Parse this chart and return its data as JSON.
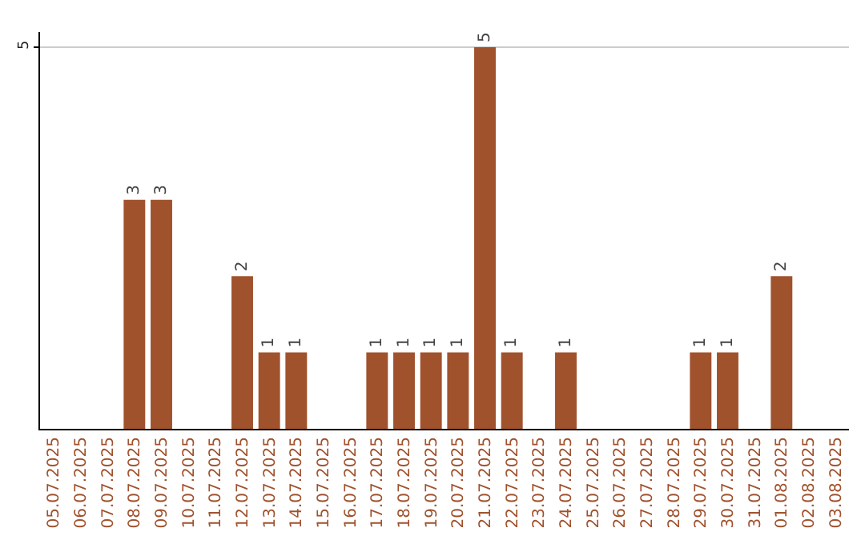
{
  "chart_data": {
    "type": "bar",
    "categories": [
      "05.07.2025",
      "06.07.2025",
      "07.07.2025",
      "08.07.2025",
      "09.07.2025",
      "10.07.2025",
      "11.07.2025",
      "12.07.2025",
      "13.07.2025",
      "14.07.2025",
      "15.07.2025",
      "16.07.2025",
      "17.07.2025",
      "18.07.2025",
      "19.07.2025",
      "20.07.2025",
      "21.07.2025",
      "22.07.2025",
      "23.07.2025",
      "24.07.2025",
      "25.07.2025",
      "26.07.2025",
      "27.07.2025",
      "28.07.2025",
      "29.07.2025",
      "30.07.2025",
      "31.07.2025",
      "01.08.2025",
      "02.08.2025",
      "03.08.2025"
    ],
    "values": [
      null,
      null,
      null,
      3,
      3,
      null,
      null,
      2,
      1,
      1,
      null,
      null,
      1,
      1,
      1,
      1,
      5,
      1,
      null,
      1,
      null,
      null,
      null,
      null,
      1,
      1,
      null,
      2,
      null,
      null
    ],
    "color": "#a0522d",
    "ylim": [
      0,
      5.2
    ],
    "yticks": [
      5
    ],
    "grid": "y",
    "data_labels": true
  }
}
